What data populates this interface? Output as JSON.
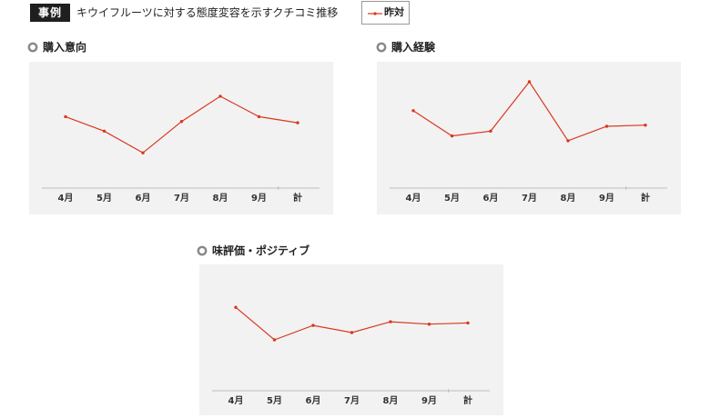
{
  "header": {
    "tag": "事例",
    "title": "キウイフルーツに対する態度変容を示すクチコミ推移"
  },
  "legend": {
    "label": "昨対",
    "line_color": "#d9371f"
  },
  "colors": {
    "series": "#d9371f",
    "panel_bg": "#f2f2f2",
    "baseline": "#bdbdbd"
  },
  "chart_data": [
    {
      "type": "line",
      "title": "購入意向",
      "categories": [
        "4月",
        "5月",
        "6月",
        "7月",
        "8月",
        "9月",
        "計"
      ],
      "series": [
        {
          "name": "昨対",
          "values": [
            1.1,
            0.98,
            0.8,
            1.06,
            1.27,
            1.1,
            1.05
          ]
        }
      ],
      "ylim": [
        0.5,
        1.45
      ],
      "grid": false,
      "legend": "top"
    },
    {
      "type": "line",
      "title": "購入経験",
      "categories": [
        "4月",
        "5月",
        "6月",
        "7月",
        "8月",
        "9月",
        "計"
      ],
      "series": [
        {
          "name": "昨対",
          "values": [
            1.15,
            0.94,
            0.98,
            1.39,
            0.9,
            1.02,
            1.03
          ]
        }
      ],
      "ylim": [
        0.5,
        1.45
      ],
      "grid": false,
      "legend": "top"
    },
    {
      "type": "line",
      "title": "味評価・ポジティブ",
      "categories": [
        "4月",
        "5月",
        "6月",
        "7月",
        "8月",
        "9月",
        "計"
      ],
      "series": [
        {
          "name": "昨対",
          "values": [
            1.2,
            0.93,
            1.05,
            0.99,
            1.08,
            1.06,
            1.07
          ]
        }
      ],
      "ylim": [
        0.5,
        1.45
      ],
      "grid": false,
      "legend": "top"
    }
  ]
}
